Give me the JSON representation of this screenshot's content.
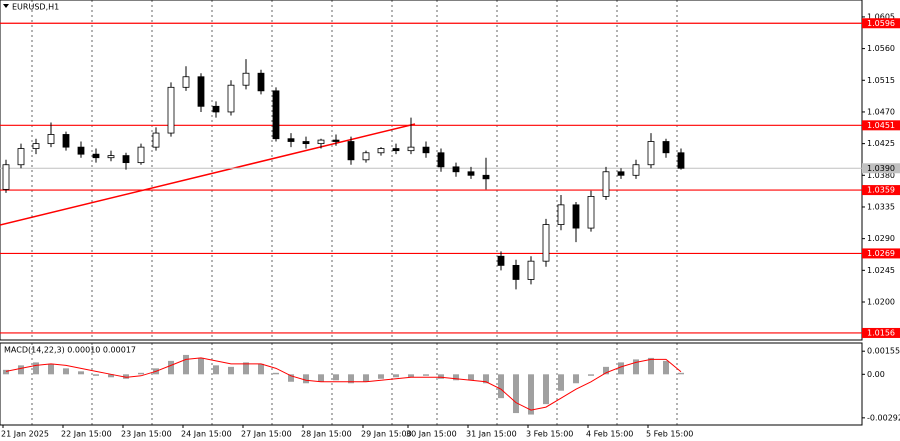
{
  "chart_data": {
    "type": "candlestick",
    "title": "EURUSD,H1",
    "categories": [
      "21 Jan 2025",
      null,
      null,
      null,
      "22 Jan 15:00",
      null,
      null,
      null,
      "23 Jan 15:00",
      null,
      null,
      null,
      "24 Jan 15:00",
      null,
      null,
      null,
      "27 Jan 15:00",
      null,
      null,
      null,
      "28 Jan 15:00",
      null,
      null,
      null,
      "29 Jan 15:00",
      null,
      null,
      "30 Jan 15:00",
      null,
      null,
      null,
      "31 Jan 15:00",
      null,
      null,
      null,
      "3 Feb 15:00",
      null,
      null,
      null,
      "4 Feb 15:00",
      null,
      null,
      null,
      "5 Feb 15:00",
      null,
      null
    ],
    "open": [
      1.036,
      1.0395,
      1.0418,
      1.0425,
      1.0438,
      1.042,
      1.041,
      1.0405,
      1.0408,
      1.0398,
      1.042,
      1.044,
      1.0505,
      1.052,
      1.0478,
      1.047,
      1.0508,
      1.0525,
      1.05,
      1.0432,
      1.0428,
      1.0425,
      1.043,
      1.0428,
      1.0402,
      1.0412,
      1.0418,
      1.0415,
      1.042,
      1.0412,
      1.0392,
      1.0385,
      1.038,
      1.0265,
      1.0252,
      1.0232,
      1.0258,
      1.031,
      1.0338,
      1.0305,
      1.035,
      1.0385,
      1.038,
      1.0395,
      1.0428,
      1.0412
    ],
    "high": [
      1.0402,
      1.0425,
      1.0432,
      1.0455,
      1.0442,
      1.0428,
      1.0418,
      1.0415,
      1.0412,
      1.0425,
      1.0448,
      1.0512,
      1.0535,
      1.0525,
      1.0485,
      1.0515,
      1.0545,
      1.053,
      1.0505,
      1.044,
      1.0435,
      1.0432,
      1.0438,
      1.0435,
      1.0415,
      1.042,
      1.0425,
      1.0462,
      1.0428,
      1.0418,
      1.0398,
      1.0392,
      1.0405,
      1.0272,
      1.026,
      1.0265,
      1.0318,
      1.0352,
      1.0342,
      1.0358,
      1.0392,
      1.039,
      1.0402,
      1.044,
      1.0432,
      1.0418
    ],
    "low": [
      1.0355,
      1.039,
      1.041,
      1.042,
      1.0415,
      1.0405,
      1.0398,
      1.04,
      1.0388,
      1.0395,
      1.0415,
      1.0435,
      1.05,
      1.047,
      1.0462,
      1.0465,
      1.0502,
      1.0495,
      1.0428,
      1.042,
      1.0418,
      1.0418,
      1.0422,
      1.0395,
      1.0398,
      1.0408,
      1.041,
      1.041,
      1.0405,
      1.0385,
      1.0378,
      1.0375,
      1.036,
      1.0245,
      1.0218,
      1.0225,
      1.025,
      1.0302,
      1.0285,
      1.03,
      1.0345,
      1.0375,
      1.0375,
      1.039,
      1.0405,
      1.0388
    ],
    "close": [
      1.0395,
      1.0418,
      1.0425,
      1.0438,
      1.042,
      1.041,
      1.0405,
      1.0408,
      1.0398,
      1.042,
      1.044,
      1.0505,
      1.052,
      1.0478,
      1.047,
      1.0508,
      1.0525,
      1.05,
      1.0432,
      1.0428,
      1.0425,
      1.043,
      1.0428,
      1.0402,
      1.0412,
      1.0418,
      1.0415,
      1.042,
      1.0412,
      1.0392,
      1.0385,
      1.038,
      1.0375,
      1.0252,
      1.0232,
      1.0258,
      1.031,
      1.0338,
      1.0305,
      1.035,
      1.0385,
      1.038,
      1.0395,
      1.0428,
      1.0412,
      1.039
    ],
    "ylim": [
      1.0146,
      1.0612
    ],
    "yticks": [
      1.0605,
      {
        "value": 1.056,
        "label": "1.0560"
      },
      1.0515,
      {
        "value": 1.047,
        "label": "1.0470"
      },
      1.0425,
      {
        "value": 1.038,
        "label": "1.0380"
      },
      1.0335,
      {
        "value": 1.029,
        "label": "1.0290"
      },
      1.0245,
      {
        "value": 1.02,
        "label": "1.0200"
      }
    ],
    "levels": [
      1.0596,
      1.0451,
      1.0359,
      1.0269,
      1.0156
    ],
    "level_color": "#ff0000",
    "current_price": {
      "value": 1.039,
      "label": "1.0390"
    },
    "macd": {
      "title": "MACD(14,22,3) 0.00010 0.00017",
      "histogram": [
        0.0003,
        0.0006,
        0.0008,
        0.0007,
        0.0004,
        0.0002,
        -0.0001,
        -0.0002,
        -0.0003,
        0.0001,
        0.0004,
        0.0009,
        0.0013,
        0.0011,
        0.0006,
        0.0005,
        0.0008,
        0.0007,
        0.0001,
        -0.0005,
        -0.0006,
        -0.0005,
        -0.0004,
        -0.0006,
        -0.0005,
        -0.0003,
        -0.0002,
        -0.0002,
        -0.0001,
        -0.0003,
        -0.0004,
        -0.0004,
        -0.0006,
        -0.0016,
        -0.0026,
        -0.0027,
        -0.002,
        -0.0011,
        -0.0006,
        -0.0001,
        0.0005,
        0.0008,
        0.001,
        0.0011,
        0.0009,
        0.0001
      ],
      "signal": [
        0.0002,
        0.0004,
        0.0006,
        0.0007,
        0.0006,
        0.0004,
        0.0002,
        0.0,
        -0.0002,
        -0.0001,
        0.0002,
        0.0006,
        0.001,
        0.0011,
        0.0009,
        0.0007,
        0.0007,
        0.0007,
        0.0004,
        -0.0001,
        -0.0004,
        -0.0005,
        -0.0005,
        -0.0005,
        -0.0005,
        -0.0004,
        -0.0003,
        -0.0002,
        -0.0002,
        -0.0002,
        -0.0003,
        -0.0004,
        -0.0005,
        -0.001,
        -0.0019,
        -0.0024,
        -0.0022,
        -0.0016,
        -0.001,
        -0.0005,
        0.0001,
        0.0005,
        0.0008,
        0.001,
        0.001,
        0.00017
      ],
      "signal_color": "#ff0000",
      "histogram_color": "#a0a0a0",
      "ylim": [
        -0.0034,
        0.0021
      ],
      "yticks": [
        0.00155,
        {
          "value": 0,
          "label": "0.00"
        },
        -0.00292
      ]
    }
  }
}
